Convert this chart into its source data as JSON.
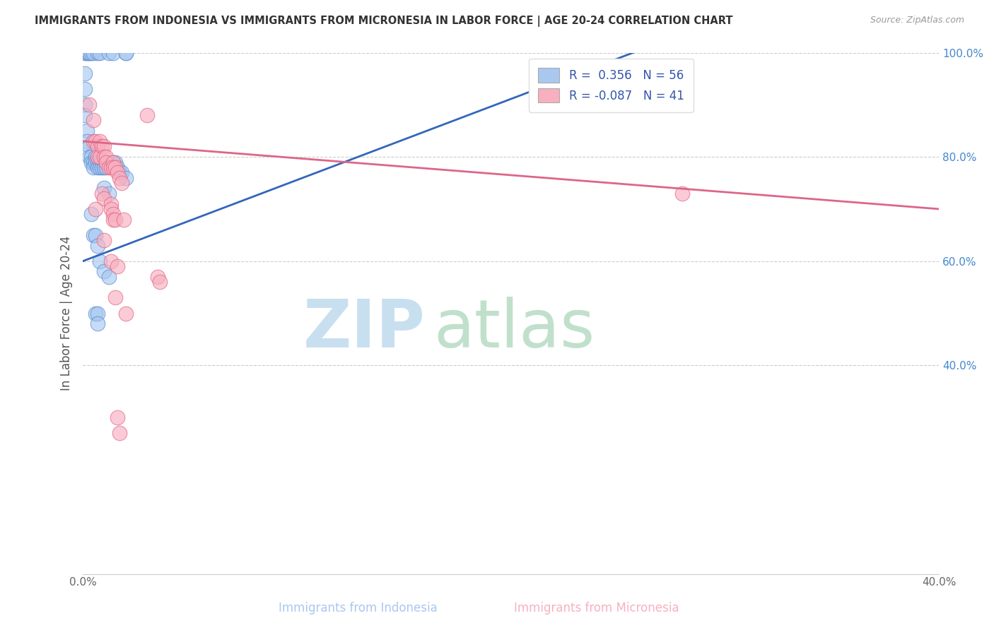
{
  "title": "IMMIGRANTS FROM INDONESIA VS IMMIGRANTS FROM MICRONESIA IN LABOR FORCE | AGE 20-24 CORRELATION CHART",
  "source": "Source: ZipAtlas.com",
  "xlabel_blue": "Immigrants from Indonesia",
  "xlabel_pink": "Immigrants from Micronesia",
  "ylabel": "In Labor Force | Age 20-24",
  "xlim": [
    0.0,
    0.4
  ],
  "ylim": [
    0.0,
    1.0
  ],
  "ytick_labels_right": [
    "100.0%",
    "80.0%",
    "60.0%",
    "40.0%"
  ],
  "ytick_positions_right": [
    1.0,
    0.8,
    0.6,
    0.4
  ],
  "R_blue": 0.356,
  "N_blue": 56,
  "R_pink": -0.087,
  "N_pink": 41,
  "blue_scatter_color": "#a8c8f0",
  "blue_edge_color": "#5588cc",
  "pink_scatter_color": "#f8b0c0",
  "pink_edge_color": "#e06080",
  "blue_line_color": "#3366bb",
  "pink_line_color": "#dd6688",
  "watermark_zip_color": "#c8dff0",
  "watermark_atlas_color": "#99ccaa",
  "legend_text_color": "#3355aa",
  "right_axis_color": "#4488cc",
  "blue_dots": [
    [
      0.001,
      1.0
    ],
    [
      0.002,
      1.0
    ],
    [
      0.002,
      1.0
    ],
    [
      0.003,
      1.0
    ],
    [
      0.003,
      1.0
    ],
    [
      0.004,
      1.0
    ],
    [
      0.005,
      1.0
    ],
    [
      0.007,
      1.0
    ],
    [
      0.008,
      1.0
    ],
    [
      0.012,
      1.0
    ],
    [
      0.014,
      1.0
    ],
    [
      0.02,
      1.0
    ],
    [
      0.02,
      1.0
    ],
    [
      0.001,
      0.96
    ],
    [
      0.001,
      0.93
    ],
    [
      0.001,
      0.9
    ],
    [
      0.001,
      0.88
    ],
    [
      0.002,
      0.85
    ],
    [
      0.002,
      0.83
    ],
    [
      0.003,
      0.82
    ],
    [
      0.003,
      0.8
    ],
    [
      0.004,
      0.8
    ],
    [
      0.004,
      0.79
    ],
    [
      0.005,
      0.79
    ],
    [
      0.005,
      0.78
    ],
    [
      0.006,
      0.8
    ],
    [
      0.006,
      0.79
    ],
    [
      0.007,
      0.79
    ],
    [
      0.007,
      0.78
    ],
    [
      0.008,
      0.79
    ],
    [
      0.008,
      0.78
    ],
    [
      0.009,
      0.79
    ],
    [
      0.009,
      0.78
    ],
    [
      0.01,
      0.79
    ],
    [
      0.01,
      0.78
    ],
    [
      0.011,
      0.78
    ],
    [
      0.012,
      0.79
    ],
    [
      0.013,
      0.79
    ],
    [
      0.014,
      0.79
    ],
    [
      0.015,
      0.79
    ],
    [
      0.016,
      0.78
    ],
    [
      0.017,
      0.77
    ],
    [
      0.018,
      0.77
    ],
    [
      0.02,
      0.76
    ],
    [
      0.01,
      0.74
    ],
    [
      0.012,
      0.73
    ],
    [
      0.004,
      0.69
    ],
    [
      0.005,
      0.65
    ],
    [
      0.006,
      0.65
    ],
    [
      0.007,
      0.63
    ],
    [
      0.008,
      0.6
    ],
    [
      0.01,
      0.58
    ],
    [
      0.012,
      0.57
    ],
    [
      0.006,
      0.5
    ],
    [
      0.007,
      0.5
    ],
    [
      0.007,
      0.48
    ]
  ],
  "pink_dots": [
    [
      0.003,
      0.9
    ],
    [
      0.005,
      0.87
    ],
    [
      0.005,
      0.83
    ],
    [
      0.006,
      0.83
    ],
    [
      0.007,
      0.82
    ],
    [
      0.007,
      0.8
    ],
    [
      0.008,
      0.8
    ],
    [
      0.008,
      0.83
    ],
    [
      0.009,
      0.82
    ],
    [
      0.01,
      0.82
    ],
    [
      0.01,
      0.8
    ],
    [
      0.011,
      0.8
    ],
    [
      0.011,
      0.79
    ],
    [
      0.012,
      0.78
    ],
    [
      0.013,
      0.78
    ],
    [
      0.014,
      0.79
    ],
    [
      0.014,
      0.78
    ],
    [
      0.015,
      0.78
    ],
    [
      0.016,
      0.77
    ],
    [
      0.017,
      0.76
    ],
    [
      0.018,
      0.75
    ],
    [
      0.009,
      0.73
    ],
    [
      0.01,
      0.72
    ],
    [
      0.013,
      0.71
    ],
    [
      0.006,
      0.7
    ],
    [
      0.013,
      0.7
    ],
    [
      0.014,
      0.69
    ],
    [
      0.014,
      0.68
    ],
    [
      0.015,
      0.68
    ],
    [
      0.019,
      0.68
    ],
    [
      0.01,
      0.64
    ],
    [
      0.013,
      0.6
    ],
    [
      0.016,
      0.59
    ],
    [
      0.035,
      0.57
    ],
    [
      0.036,
      0.56
    ],
    [
      0.015,
      0.53
    ],
    [
      0.02,
      0.5
    ],
    [
      0.28,
      0.73
    ],
    [
      0.03,
      0.88
    ],
    [
      0.016,
      0.3
    ],
    [
      0.017,
      0.27
    ]
  ],
  "blue_line": {
    "x0": 0.0,
    "y0": 0.6,
    "x1": 0.27,
    "y1": 1.02
  },
  "pink_line": {
    "x0": 0.0,
    "y0": 0.83,
    "x1": 0.4,
    "y1": 0.7
  }
}
